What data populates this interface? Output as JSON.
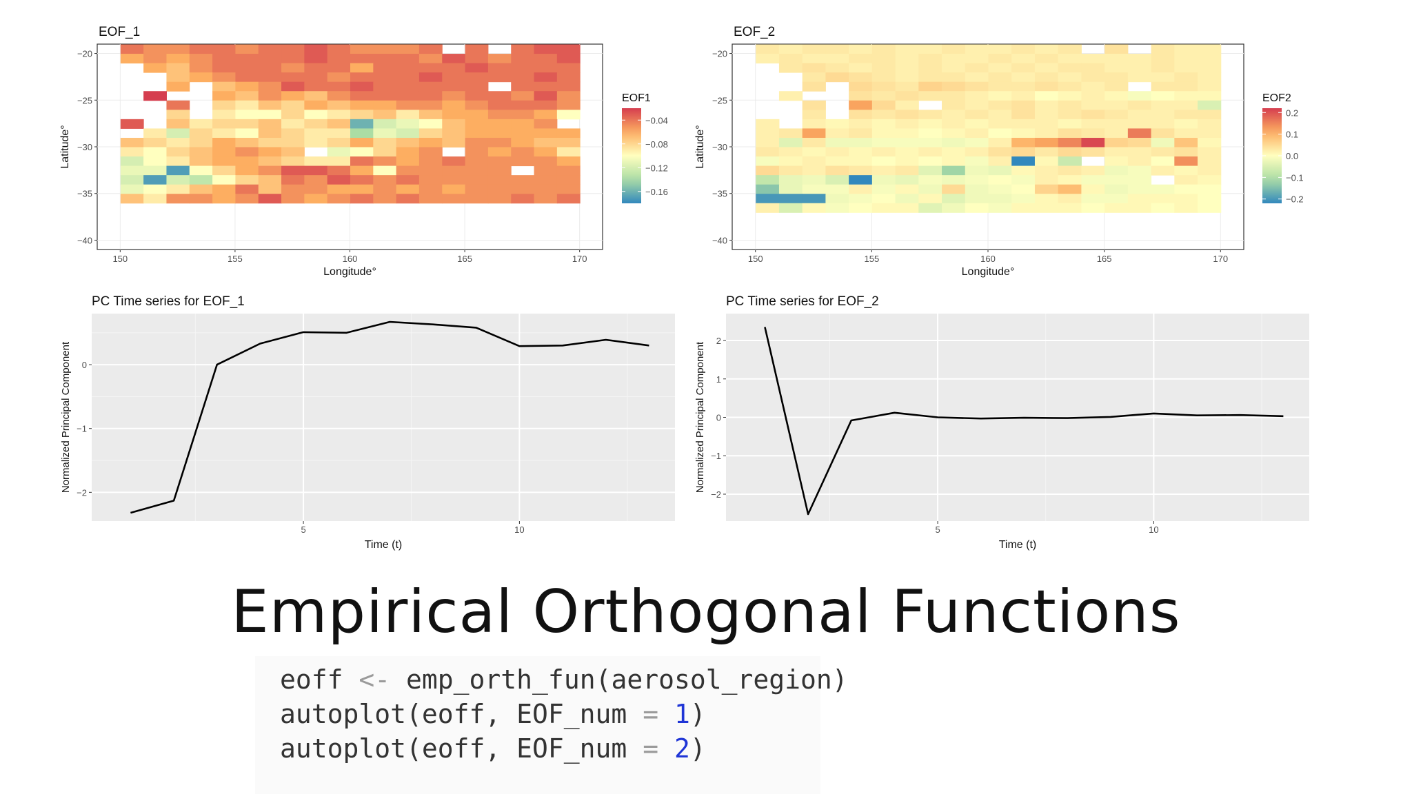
{
  "slide_title": "Empirical Orthogonal Functions",
  "code": {
    "line1": {
      "a": "eoff ",
      "op": "<-",
      "b": " emp_orth_fun(aerosol_region)"
    },
    "line2": {
      "a": "autoplot(eoff, EOF_num ",
      "op": "=",
      "sp": " ",
      "num": "1",
      "c": ")"
    },
    "line3": {
      "a": "autoplot(eoff, EOF_num ",
      "op": "=",
      "sp": " ",
      "num": "2",
      "c": ")"
    }
  },
  "chart_data": [
    {
      "type": "heatmap",
      "title": "EOF_1",
      "xlabel": "Longitude°",
      "ylabel": "Latitude°",
      "xlim": [
        150,
        170
      ],
      "ylim": [
        -40,
        -20
      ],
      "xticks": [
        150,
        155,
        160,
        165,
        170
      ],
      "yticks": [
        -20,
        -25,
        -30,
        -35,
        -40
      ],
      "legend_title": "EOF1",
      "legend_ticks": [
        -0.04,
        -0.08,
        -0.12,
        -0.16
      ],
      "color_range": [
        -0.18,
        -0.02
      ],
      "lon_start": 150,
      "lat_start": -20,
      "cell_size": 1,
      "grid": [
        [
          -0.04,
          -0.05,
          -0.05,
          -0.04,
          -0.04,
          -0.05,
          -0.04,
          -0.04,
          -0.03,
          -0.04,
          -0.05,
          -0.05,
          -0.05,
          -0.04,
          null,
          -0.04,
          null,
          -0.04,
          -0.03,
          -0.03
        ],
        [
          -0.06,
          -0.05,
          -0.06,
          -0.05,
          -0.04,
          -0.04,
          -0.04,
          -0.04,
          -0.03,
          -0.04,
          -0.04,
          -0.04,
          -0.04,
          -0.05,
          -0.03,
          -0.04,
          -0.05,
          -0.04,
          -0.04,
          -0.03
        ],
        [
          null,
          -0.06,
          -0.07,
          -0.05,
          -0.04,
          -0.04,
          -0.04,
          -0.05,
          -0.04,
          -0.04,
          -0.06,
          -0.04,
          -0.04,
          -0.04,
          -0.04,
          -0.03,
          -0.04,
          -0.04,
          -0.04,
          -0.04
        ],
        [
          null,
          null,
          -0.07,
          -0.06,
          -0.05,
          -0.04,
          -0.04,
          -0.04,
          -0.04,
          -0.05,
          -0.04,
          -0.04,
          -0.04,
          -0.03,
          -0.04,
          -0.04,
          -0.04,
          -0.04,
          -0.03,
          -0.04
        ],
        [
          null,
          null,
          -0.06,
          null,
          -0.07,
          -0.06,
          -0.05,
          -0.03,
          -0.04,
          -0.04,
          -0.03,
          -0.04,
          -0.04,
          -0.04,
          -0.04,
          -0.04,
          null,
          -0.04,
          -0.04,
          -0.04
        ],
        [
          null,
          -0.02,
          null,
          null,
          -0.06,
          -0.07,
          -0.05,
          -0.06,
          -0.07,
          -0.05,
          -0.04,
          -0.04,
          -0.04,
          -0.04,
          -0.05,
          -0.04,
          -0.04,
          -0.05,
          -0.03,
          -0.05
        ],
        [
          null,
          null,
          -0.04,
          null,
          -0.08,
          -0.09,
          -0.07,
          -0.08,
          -0.06,
          -0.07,
          -0.06,
          -0.06,
          -0.05,
          -0.05,
          -0.06,
          -0.05,
          -0.04,
          -0.04,
          -0.04,
          -0.05
        ],
        [
          null,
          null,
          -0.08,
          null,
          -0.09,
          -0.1,
          -0.1,
          -0.08,
          -0.1,
          -0.09,
          -0.08,
          -0.07,
          -0.09,
          -0.07,
          -0.06,
          -0.06,
          -0.05,
          -0.05,
          -0.06,
          -0.1
        ],
        [
          -0.03,
          null,
          -0.07,
          -0.09,
          -0.08,
          -0.08,
          -0.07,
          -0.09,
          -0.08,
          -0.07,
          -0.16,
          -0.12,
          -0.11,
          -0.1,
          -0.07,
          -0.06,
          -0.06,
          -0.06,
          -0.05,
          null
        ],
        [
          null,
          -0.09,
          -0.12,
          -0.08,
          -0.09,
          -0.1,
          -0.07,
          -0.08,
          -0.09,
          -0.09,
          -0.14,
          -0.11,
          -0.12,
          -0.08,
          -0.07,
          -0.06,
          -0.06,
          -0.06,
          -0.06,
          -0.06
        ],
        [
          -0.07,
          -0.08,
          -0.09,
          -0.08,
          -0.06,
          -0.07,
          -0.08,
          -0.08,
          -0.09,
          -0.08,
          -0.06,
          -0.08,
          -0.07,
          -0.06,
          -0.07,
          -0.05,
          -0.05,
          -0.06,
          -0.07,
          -0.07
        ],
        [
          -0.09,
          -0.1,
          -0.08,
          -0.07,
          -0.06,
          -0.05,
          -0.06,
          -0.07,
          null,
          -0.11,
          -0.1,
          -0.08,
          -0.06,
          -0.05,
          null,
          -0.05,
          -0.06,
          -0.05,
          -0.06,
          -0.09
        ],
        [
          -0.12,
          -0.1,
          -0.09,
          -0.07,
          -0.06,
          -0.06,
          -0.07,
          -0.08,
          -0.09,
          -0.09,
          -0.04,
          -0.05,
          -0.06,
          -0.05,
          -0.04,
          -0.05,
          -0.05,
          -0.05,
          -0.05,
          -0.06
        ],
        [
          -0.11,
          -0.11,
          -0.17,
          -0.1,
          -0.08,
          -0.06,
          -0.05,
          -0.03,
          -0.03,
          -0.04,
          -0.06,
          -0.1,
          -0.05,
          -0.05,
          -0.05,
          -0.05,
          -0.05,
          null,
          -0.05,
          -0.05
        ],
        [
          -0.12,
          -0.17,
          -0.12,
          -0.13,
          -0.1,
          -0.08,
          -0.07,
          -0.04,
          -0.05,
          -0.03,
          -0.04,
          -0.05,
          -0.04,
          -0.05,
          -0.05,
          -0.05,
          -0.05,
          -0.05,
          -0.05,
          -0.05
        ],
        [
          -0.11,
          -0.1,
          -0.09,
          -0.07,
          -0.06,
          -0.04,
          -0.07,
          -0.05,
          -0.05,
          -0.06,
          -0.06,
          -0.05,
          -0.06,
          -0.05,
          -0.06,
          -0.05,
          -0.05,
          -0.05,
          -0.05,
          -0.05
        ],
        [
          -0.07,
          -0.09,
          -0.05,
          -0.05,
          -0.06,
          -0.05,
          -0.03,
          -0.05,
          -0.06,
          -0.05,
          -0.04,
          -0.05,
          -0.04,
          -0.05,
          -0.05,
          -0.05,
          -0.05,
          -0.04,
          -0.05,
          -0.04
        ]
      ]
    },
    {
      "type": "heatmap",
      "title": "EOF_2",
      "xlabel": "Longitude°",
      "ylabel": "Latitude°",
      "xlim": [
        150,
        170
      ],
      "ylim": [
        -40,
        -20
      ],
      "xticks": [
        150,
        155,
        160,
        165,
        170
      ],
      "yticks": [
        -20,
        -25,
        -30,
        -35,
        -40
      ],
      "legend_title": "EOF2",
      "legend_ticks": [
        0.2,
        0.1,
        0.0,
        -0.1,
        -0.2
      ],
      "color_range": [
        -0.22,
        0.22
      ],
      "lon_start": 150,
      "lat_start": -20,
      "cell_size": 1,
      "grid": [
        [
          0.03,
          0.02,
          0.03,
          0.03,
          0.02,
          0.03,
          0.02,
          0.02,
          0.03,
          0.02,
          0.02,
          0.03,
          0.02,
          0.03,
          null,
          0.04,
          null,
          0.03,
          0.02,
          0.02
        ],
        [
          0.02,
          0.03,
          0.02,
          0.02,
          0.03,
          0.03,
          0.02,
          0.03,
          0.02,
          0.02,
          0.03,
          0.02,
          0.03,
          0.02,
          0.02,
          0.02,
          0.02,
          0.03,
          0.02,
          0.02
        ],
        [
          null,
          0.03,
          0.04,
          0.03,
          0.02,
          0.03,
          0.02,
          0.03,
          0.02,
          0.03,
          0.02,
          0.03,
          0.02,
          0.03,
          0.03,
          0.02,
          0.02,
          0.03,
          0.02,
          0.02
        ],
        [
          null,
          null,
          0.03,
          0.05,
          0.04,
          0.03,
          0.02,
          0.03,
          0.03,
          0.02,
          0.03,
          0.02,
          0.03,
          0.02,
          0.03,
          0.03,
          0.02,
          0.02,
          0.03,
          0.02
        ],
        [
          null,
          null,
          0.04,
          null,
          0.05,
          0.04,
          0.03,
          0.06,
          0.05,
          0.04,
          0.03,
          0.03,
          0.04,
          0.03,
          0.02,
          0.03,
          null,
          0.03,
          0.03,
          0.02
        ],
        [
          null,
          0.02,
          null,
          null,
          0.04,
          0.03,
          0.04,
          0.03,
          0.03,
          0.02,
          0.01,
          0.02,
          0.0,
          0.01,
          0.02,
          0.01,
          -0.01,
          0.0,
          0.01,
          0.01
        ],
        [
          null,
          null,
          0.04,
          null,
          0.12,
          0.05,
          0.02,
          null,
          0.03,
          0.02,
          0.03,
          0.04,
          0.02,
          0.03,
          0.02,
          0.02,
          0.03,
          0.02,
          0.02,
          -0.05
        ],
        [
          null,
          null,
          0.03,
          null,
          0.04,
          0.03,
          0.04,
          0.03,
          0.02,
          0.03,
          0.02,
          0.04,
          0.02,
          0.03,
          0.04,
          0.03,
          0.02,
          0.02,
          0.03,
          0.03
        ],
        [
          0.02,
          null,
          0.02,
          0.01,
          0.02,
          0.01,
          0.02,
          0.01,
          0.02,
          0.01,
          0.02,
          0.02,
          0.02,
          0.01,
          0.02,
          0.02,
          0.02,
          0.02,
          0.01,
          0.02
        ],
        [
          0.02,
          0.03,
          0.12,
          0.02,
          0.03,
          0.01,
          0.01,
          0.0,
          0.01,
          0.02,
          0.0,
          0.01,
          0.02,
          0.04,
          0.03,
          0.02,
          0.16,
          0.04,
          0.02,
          0.02
        ],
        [
          0.02,
          -0.04,
          0.03,
          -0.02,
          -0.02,
          -0.01,
          -0.01,
          -0.01,
          -0.02,
          -0.01,
          0.02,
          0.1,
          0.12,
          0.15,
          0.21,
          0.06,
          0.05,
          -0.02,
          0.08,
          0.01
        ],
        [
          0.03,
          0.02,
          0.01,
          0.02,
          0.01,
          0.02,
          0.01,
          0.02,
          0.01,
          0.02,
          0.04,
          0.05,
          0.03,
          0.05,
          0.04,
          0.02,
          0.02,
          0.03,
          0.04,
          0.02
        ],
        [
          -0.01,
          0.01,
          0.02,
          0.01,
          0.01,
          0.0,
          0.01,
          0.0,
          0.01,
          -0.01,
          0.02,
          -0.22,
          0.01,
          -0.07,
          null,
          0.01,
          0.02,
          0.0,
          0.14,
          0.02
        ],
        [
          0.05,
          0.03,
          0.02,
          0.04,
          0.03,
          0.02,
          0.03,
          -0.04,
          -0.12,
          -0.02,
          -0.03,
          0.01,
          0.02,
          0.03,
          0.02,
          -0.02,
          -0.01,
          0.02,
          0.01,
          0.02
        ],
        [
          -0.08,
          -0.03,
          -0.02,
          -0.05,
          -0.22,
          -0.02,
          -0.03,
          -0.01,
          -0.02,
          -0.01,
          0.0,
          -0.01,
          0.02,
          0.01,
          -0.01,
          -0.01,
          -0.01,
          null,
          0.02,
          0.01
        ],
        [
          -0.14,
          -0.03,
          -0.01,
          -0.01,
          0.02,
          -0.01,
          0.01,
          -0.02,
          0.05,
          -0.02,
          -0.01,
          0.0,
          0.06,
          0.09,
          0.01,
          -0.02,
          -0.01,
          -0.01,
          0.0,
          0.0
        ],
        [
          -0.2,
          -0.2,
          -0.2,
          -0.02,
          -0.01,
          0.0,
          -0.02,
          0.01,
          -0.04,
          -0.02,
          -0.02,
          -0.01,
          0.01,
          0.02,
          -0.01,
          -0.01,
          0.01,
          0.01,
          0.01,
          0.0
        ],
        [
          0.02,
          -0.05,
          0.01,
          -0.01,
          0.0,
          0.01,
          0.01,
          -0.04,
          -0.02,
          0.0,
          -0.01,
          0.01,
          0.01,
          0.01,
          0.0,
          0.01,
          0.01,
          0.0,
          0.01,
          0.0
        ]
      ]
    },
    {
      "type": "line",
      "title": "PC Time series for EOF_1",
      "xlabel": "Time (t)",
      "ylabel": "Normalized Principal Component",
      "x": [
        1,
        2,
        3,
        4,
        5,
        6,
        7,
        8,
        9,
        10,
        11,
        12,
        13
      ],
      "y": [
        -2.32,
        -2.13,
        0.0,
        0.33,
        0.51,
        0.5,
        0.67,
        0.63,
        0.58,
        0.29,
        0.3,
        0.39,
        0.3
      ],
      "xlim": [
        0.1,
        13.6
      ],
      "ylim": [
        -2.45,
        0.8
      ],
      "xticks": [
        5,
        10
      ],
      "yticks": [
        0,
        -1,
        -2
      ]
    },
    {
      "type": "line",
      "title": "PC Time series for EOF_2",
      "xlabel": "Time (t)",
      "ylabel": "Normalized Principal Component",
      "x": [
        1,
        2,
        3,
        4,
        5,
        6,
        7,
        8,
        9,
        10,
        11,
        12,
        13
      ],
      "y": [
        2.35,
        -2.52,
        -0.08,
        0.12,
        0.0,
        -0.03,
        -0.01,
        -0.02,
        0.01,
        0.1,
        0.05,
        0.06,
        0.03
      ],
      "xlim": [
        0.1,
        13.6
      ],
      "ylim": [
        -2.7,
        2.7
      ],
      "xticks": [
        5,
        10
      ],
      "yticks": [
        2,
        1,
        0,
        -1,
        -2
      ]
    }
  ]
}
